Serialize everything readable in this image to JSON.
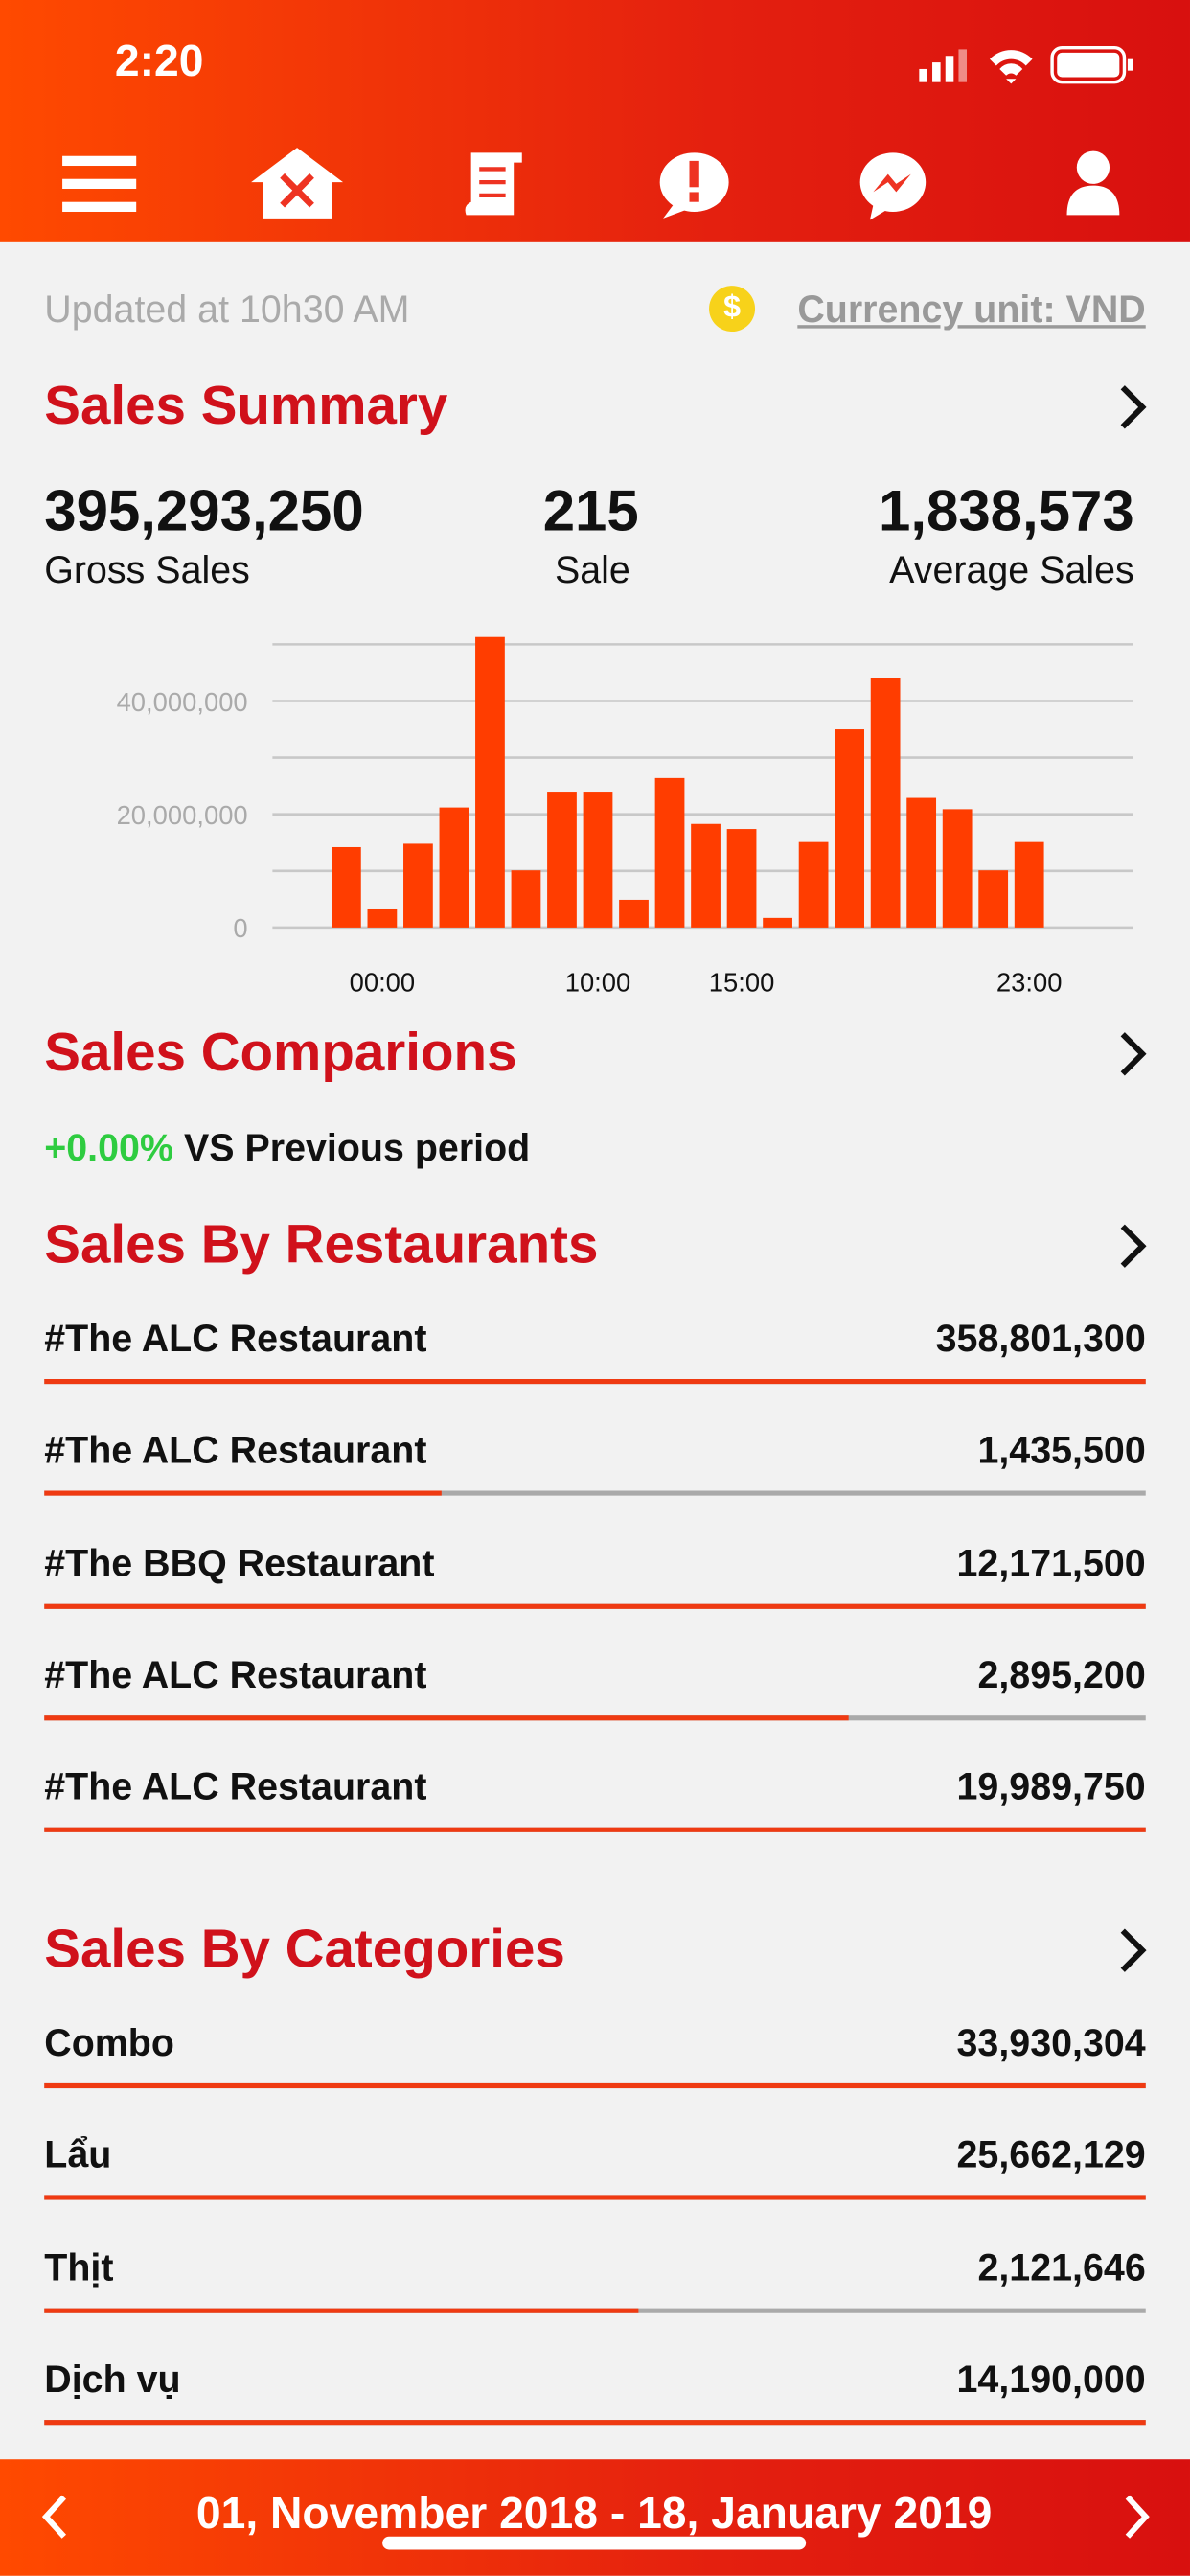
{
  "status_time": "2:20",
  "updated": "Updated at 10h30 AM",
  "currency_icon": "$",
  "currency": "Currency unit: VND",
  "summary": {
    "title": "Sales Summary",
    "stats": [
      {
        "value": "395,293,250",
        "label": "Gross Sales"
      },
      {
        "value": "215",
        "label": "Sale"
      },
      {
        "value": "1,838,573",
        "label": "Average Sales"
      }
    ],
    "chart": {
      "type": "bar",
      "categories": [
        null,
        "00:00",
        null,
        null,
        null,
        null,
        null,
        "10:00",
        null,
        null,
        null,
        "15:00",
        null,
        null,
        null,
        null,
        null,
        null,
        null,
        "23:00"
      ],
      "values": [
        14200000,
        3200000,
        14800000,
        21200000,
        51300000,
        10100000,
        24000000,
        24000000,
        4900000,
        26400000,
        18300000,
        17400000,
        1700000,
        15100000,
        35000000,
        44000000,
        22900000,
        20900000,
        10100000,
        15100000
      ],
      "color": "#ff3d00",
      "ylim": [
        0,
        52000000
      ],
      "yticks": [
        0,
        {
          "value": 20000000,
          "label": "20,000,000"
        },
        {
          "value": 40000000,
          "label": "40,000,000"
        }
      ],
      "gridlines": [
        0,
        10000000,
        20000000,
        30000000,
        40000000,
        50000000
      ]
    }
  },
  "comparison": {
    "title": "Sales Comparions",
    "change": "+0.00%",
    "text": "VS Previous period"
  },
  "restaurants": {
    "title": "Sales By Restaurants",
    "rows": [
      {
        "name": "#The ALC Restaurant",
        "amount": "358,801,300",
        "progress": 100
      },
      {
        "name": "#The ALC Restaurant",
        "amount": "1,435,500",
        "progress": 36
      },
      {
        "name": "#The BBQ Restaurant",
        "amount": "12,171,500",
        "progress": 100
      },
      {
        "name": "#The ALC Restaurant",
        "amount": "2,895,200",
        "progress": 73
      },
      {
        "name": "#The ALC Restaurant",
        "amount": "19,989,750",
        "progress": 100
      }
    ]
  },
  "categories": {
    "title": "Sales By Categories",
    "rows": [
      {
        "name": "Combo",
        "amount": "33,930,304",
        "progress": 100
      },
      {
        "name": "Lẩu",
        "amount": "25,662,129",
        "progress": 100
      },
      {
        "name": "Thịt",
        "amount": "2,121,646",
        "progress": 54
      },
      {
        "name": "Dịch vụ",
        "amount": "14,190,000",
        "progress": 100
      }
    ]
  },
  "footer": {
    "date_range": "01, November 2018 - 18, January 2019"
  }
}
